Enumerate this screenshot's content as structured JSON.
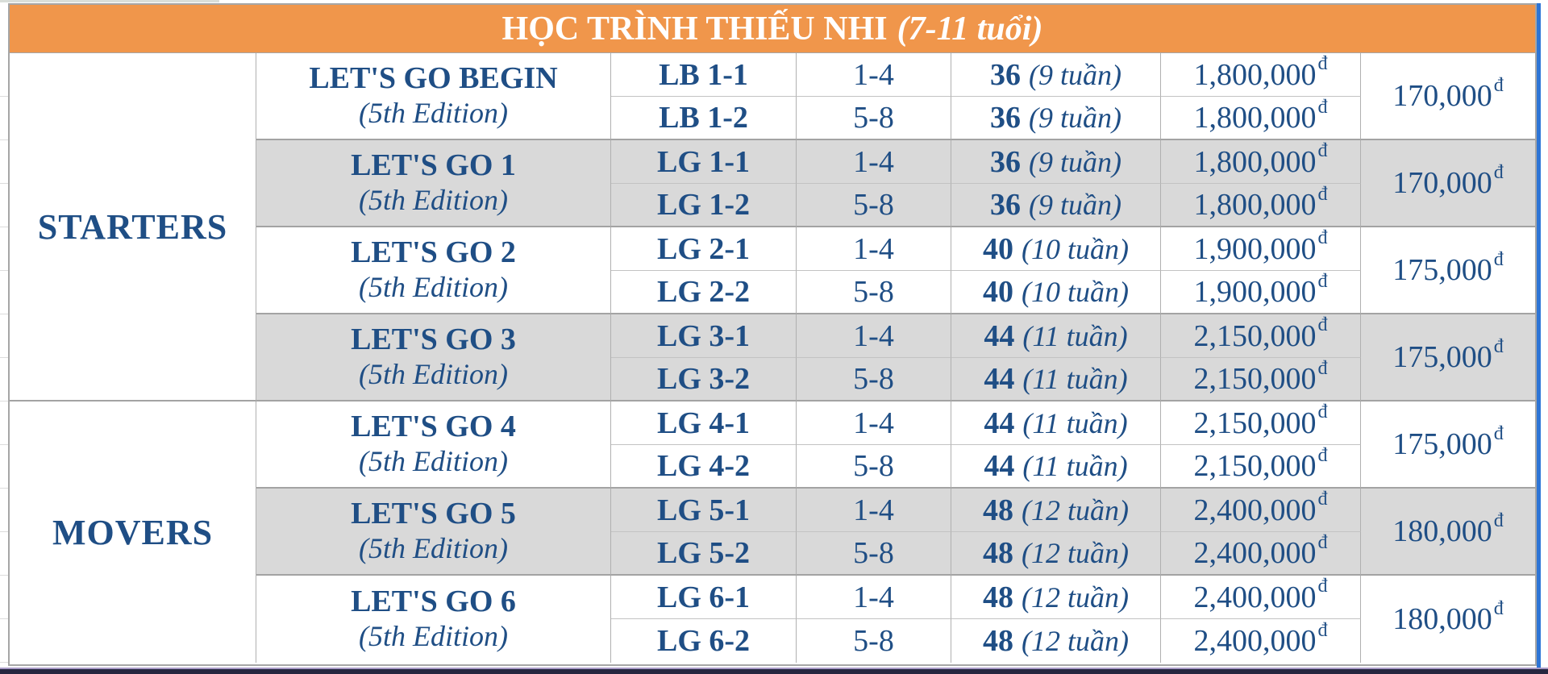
{
  "header": {
    "title": "HỌC TRÌNH THIẾU NHI",
    "age_range": "(7-11 tuổi)"
  },
  "sym": {
    "dong": "đ"
  },
  "levels": [
    {
      "name": "STARTERS"
    },
    {
      "name": "MOVERS"
    }
  ],
  "groups": [
    {
      "course": "LET'S GO BEGIN",
      "edition": "(5th Edition)",
      "level": "STARTERS",
      "shaded": false,
      "price_per_session": "170,000",
      "rows": [
        {
          "code": "LB 1-1",
          "units": "1-4",
          "sessions": "36",
          "weeks": "(9 tuần)",
          "price": "1,800,000"
        },
        {
          "code": "LB 1-2",
          "units": "5-8",
          "sessions": "36",
          "weeks": "(9 tuần)",
          "price": "1,800,000"
        }
      ]
    },
    {
      "course": "LET'S GO 1",
      "edition": "(5th Edition)",
      "level": "STARTERS",
      "shaded": true,
      "price_per_session": "170,000",
      "rows": [
        {
          "code": "LG 1-1",
          "units": "1-4",
          "sessions": "36",
          "weeks": "(9 tuần)",
          "price": "1,800,000"
        },
        {
          "code": "LG 1-2",
          "units": "5-8",
          "sessions": "36",
          "weeks": "(9 tuần)",
          "price": "1,800,000"
        }
      ]
    },
    {
      "course": "LET'S GO 2",
      "edition": "(5th Edition)",
      "level": "STARTERS",
      "shaded": false,
      "price_per_session": "175,000",
      "rows": [
        {
          "code": "LG 2-1",
          "units": "1-4",
          "sessions": "40",
          "weeks": "(10 tuần)",
          "price": "1,900,000"
        },
        {
          "code": "LG 2-2",
          "units": "5-8",
          "sessions": "40",
          "weeks": "(10 tuần)",
          "price": "1,900,000"
        }
      ]
    },
    {
      "course": "LET'S GO 3",
      "edition": "(5th Edition)",
      "level": "STARTERS",
      "shaded": true,
      "price_per_session": "175,000",
      "rows": [
        {
          "code": "LG 3-1",
          "units": "1-4",
          "sessions": "44",
          "weeks": "(11 tuần)",
          "price": "2,150,000"
        },
        {
          "code": "LG 3-2",
          "units": "5-8",
          "sessions": "44",
          "weeks": "(11 tuần)",
          "price": "2,150,000"
        }
      ]
    },
    {
      "course": "LET'S GO 4",
      "edition": "(5th Edition)",
      "level": "MOVERS",
      "shaded": false,
      "price_per_session": "175,000",
      "rows": [
        {
          "code": "LG 4-1",
          "units": "1-4",
          "sessions": "44",
          "weeks": "(11 tuần)",
          "price": "2,150,000"
        },
        {
          "code": "LG 4-2",
          "units": "5-8",
          "sessions": "44",
          "weeks": "(11 tuần)",
          "price": "2,150,000"
        }
      ]
    },
    {
      "course": "LET'S GO 5",
      "edition": "(5th Edition)",
      "level": "MOVERS",
      "shaded": true,
      "price_per_session": "180,000",
      "rows": [
        {
          "code": "LG 5-1",
          "units": "1-4",
          "sessions": "48",
          "weeks": "(12 tuần)",
          "price": "2,400,000"
        },
        {
          "code": "LG 5-2",
          "units": "5-8",
          "sessions": "48",
          "weeks": "(12 tuần)",
          "price": "2,400,000"
        }
      ]
    },
    {
      "course": "LET'S GO 6",
      "edition": "(5th Edition)",
      "level": "MOVERS",
      "shaded": false,
      "price_per_session": "180,000",
      "rows": [
        {
          "code": "LG 6-1",
          "units": "1-4",
          "sessions": "48",
          "weeks": "(12 tuần)",
          "price": "2,400,000"
        },
        {
          "code": "LG 6-2",
          "units": "5-8",
          "sessions": "48",
          "weeks": "(12 tuần)",
          "price": "2,400,000"
        }
      ]
    }
  ],
  "colors": {
    "header_bg": "#f0964b",
    "text_navy": "#1f4e85",
    "shaded_row": "#d9d9d9",
    "right_edge_strip": "#2e75d6",
    "bottom_bar": "#26263f"
  }
}
